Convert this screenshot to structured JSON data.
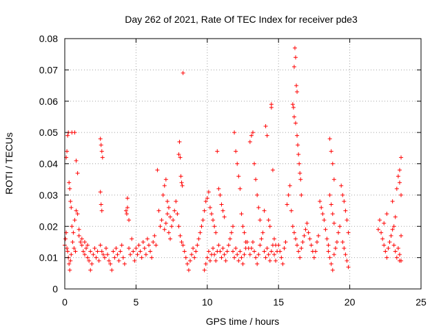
{
  "chart_data": {
    "type": "scatter",
    "title": "Day 262 of 2021, Rate Of TEC Index for receiver pde3",
    "xlabel": "GPS time / hours",
    "ylabel": "ROTI / TECUs",
    "xlim": [
      0,
      25
    ],
    "ylim": [
      0,
      0.08
    ],
    "x_ticks": [
      0,
      5,
      10,
      15,
      20,
      25
    ],
    "y_ticks": [
      0,
      0.01,
      0.02,
      0.03,
      0.04,
      0.05,
      0.06,
      0.07,
      0.08
    ],
    "x_tick_labels": [
      "0",
      "5",
      "10",
      "15",
      "20",
      "25"
    ],
    "y_tick_labels": [
      "0",
      "0.01",
      "0.02",
      "0.03",
      "0.04",
      "0.05",
      "0.06",
      "0.07",
      "0.08"
    ],
    "grid": true,
    "marker": "+",
    "color": "#ff0000",
    "points": [
      [
        0.0,
        0.014
      ],
      [
        0.05,
        0.016
      ],
      [
        0.1,
        0.018
      ],
      [
        0.15,
        0.013
      ],
      [
        0.2,
        0.012
      ],
      [
        0.25,
        0.01
      ],
      [
        0.3,
        0.008
      ],
      [
        0.35,
        0.006
      ],
      [
        0.4,
        0.009
      ],
      [
        0.45,
        0.011
      ],
      [
        0.1,
        0.042
      ],
      [
        0.15,
        0.044
      ],
      [
        0.2,
        0.049
      ],
      [
        0.25,
        0.05
      ],
      [
        0.3,
        0.034
      ],
      [
        0.35,
        0.032
      ],
      [
        0.4,
        0.028
      ],
      [
        0.45,
        0.026
      ],
      [
        0.5,
        0.05
      ],
      [
        0.7,
        0.05
      ],
      [
        0.5,
        0.02
      ],
      [
        0.6,
        0.018
      ],
      [
        0.7,
        0.022
      ],
      [
        0.8,
        0.025
      ],
      [
        0.9,
        0.024
      ],
      [
        0.8,
        0.041
      ],
      [
        0.9,
        0.037
      ],
      [
        0.55,
        0.015
      ],
      [
        0.65,
        0.013
      ],
      [
        0.75,
        0.012
      ],
      [
        1.0,
        0.017
      ],
      [
        1.1,
        0.015
      ],
      [
        1.2,
        0.014
      ],
      [
        1.3,
        0.012
      ],
      [
        1.4,
        0.011
      ],
      [
        1.5,
        0.013
      ],
      [
        1.6,
        0.01
      ],
      [
        1.7,
        0.009
      ],
      [
        1.8,
        0.012
      ],
      [
        1.9,
        0.008
      ],
      [
        1.0,
        0.019
      ],
      [
        1.2,
        0.016
      ],
      [
        1.4,
        0.015
      ],
      [
        1.6,
        0.014
      ],
      [
        1.8,
        0.006
      ],
      [
        2.0,
        0.011
      ],
      [
        2.1,
        0.013
      ],
      [
        2.2,
        0.01
      ],
      [
        2.3,
        0.012
      ],
      [
        2.4,
        0.009
      ],
      [
        2.5,
        0.048
      ],
      [
        2.55,
        0.046
      ],
      [
        2.6,
        0.044
      ],
      [
        2.65,
        0.042
      ],
      [
        2.5,
        0.031
      ],
      [
        2.55,
        0.027
      ],
      [
        2.6,
        0.025
      ],
      [
        2.5,
        0.014
      ],
      [
        2.6,
        0.012
      ],
      [
        2.7,
        0.011
      ],
      [
        2.8,
        0.01
      ],
      [
        2.9,
        0.013
      ],
      [
        3.0,
        0.011
      ],
      [
        3.1,
        0.009
      ],
      [
        3.2,
        0.008
      ],
      [
        3.3,
        0.006
      ],
      [
        3.4,
        0.012
      ],
      [
        3.5,
        0.01
      ],
      [
        3.6,
        0.013
      ],
      [
        3.7,
        0.011
      ],
      [
        3.8,
        0.009
      ],
      [
        3.9,
        0.012
      ],
      [
        4.0,
        0.014
      ],
      [
        4.1,
        0.01
      ],
      [
        4.2,
        0.008
      ],
      [
        4.3,
        0.025
      ],
      [
        4.35,
        0.024
      ],
      [
        4.4,
        0.026
      ],
      [
        4.5,
        0.022
      ],
      [
        4.4,
        0.029
      ],
      [
        4.5,
        0.013
      ],
      [
        4.6,
        0.011
      ],
      [
        4.7,
        0.016
      ],
      [
        4.8,
        0.012
      ],
      [
        4.9,
        0.009
      ],
      [
        5.0,
        0.013
      ],
      [
        5.1,
        0.011
      ],
      [
        5.2,
        0.014
      ],
      [
        5.3,
        0.012
      ],
      [
        5.4,
        0.01
      ],
      [
        5.5,
        0.015
      ],
      [
        5.6,
        0.013
      ],
      [
        5.7,
        0.011
      ],
      [
        5.8,
        0.016
      ],
      [
        5.9,
        0.014
      ],
      [
        6.0,
        0.012
      ],
      [
        6.1,
        0.01
      ],
      [
        6.2,
        0.015
      ],
      [
        6.3,
        0.017
      ],
      [
        6.4,
        0.014
      ],
      [
        6.5,
        0.038
      ],
      [
        6.6,
        0.025
      ],
      [
        6.7,
        0.02
      ],
      [
        6.8,
        0.022
      ],
      [
        6.9,
        0.03
      ],
      [
        7.0,
        0.033
      ],
      [
        7.1,
        0.035
      ],
      [
        7.2,
        0.028
      ],
      [
        7.3,
        0.026
      ],
      [
        7.4,
        0.023
      ],
      [
        7.0,
        0.019
      ],
      [
        7.1,
        0.021
      ],
      [
        7.2,
        0.024
      ],
      [
        7.3,
        0.018
      ],
      [
        7.4,
        0.016
      ],
      [
        7.5,
        0.02
      ],
      [
        7.6,
        0.022
      ],
      [
        7.7,
        0.025
      ],
      [
        7.8,
        0.028
      ],
      [
        7.9,
        0.024
      ],
      [
        8.0,
        0.043
      ],
      [
        8.05,
        0.047
      ],
      [
        8.1,
        0.042
      ],
      [
        8.15,
        0.036
      ],
      [
        8.2,
        0.034
      ],
      [
        8.25,
        0.033
      ],
      [
        8.3,
        0.069
      ],
      [
        8.0,
        0.02
      ],
      [
        8.1,
        0.017
      ],
      [
        8.2,
        0.015
      ],
      [
        8.3,
        0.014
      ],
      [
        8.4,
        0.012
      ],
      [
        8.5,
        0.01
      ],
      [
        8.6,
        0.008
      ],
      [
        8.7,
        0.006
      ],
      [
        8.8,
        0.009
      ],
      [
        8.9,
        0.011
      ],
      [
        9.0,
        0.013
      ],
      [
        9.1,
        0.01
      ],
      [
        9.2,
        0.012
      ],
      [
        9.3,
        0.014
      ],
      [
        9.4,
        0.016
      ],
      [
        9.5,
        0.018
      ],
      [
        9.6,
        0.02
      ],
      [
        9.7,
        0.022
      ],
      [
        9.8,
        0.025
      ],
      [
        9.9,
        0.028
      ],
      [
        10.0,
        0.029
      ],
      [
        10.1,
        0.031
      ],
      [
        10.2,
        0.026
      ],
      [
        10.3,
        0.024
      ],
      [
        10.4,
        0.022
      ],
      [
        10.5,
        0.02
      ],
      [
        10.6,
        0.018
      ],
      [
        10.7,
        0.044
      ],
      [
        10.8,
        0.032
      ],
      [
        10.9,
        0.03
      ],
      [
        11.0,
        0.027
      ],
      [
        11.1,
        0.025
      ],
      [
        11.2,
        0.023
      ],
      [
        9.8,
        0.006
      ],
      [
        9.9,
        0.008
      ],
      [
        10.0,
        0.01
      ],
      [
        10.1,
        0.012
      ],
      [
        10.2,
        0.009
      ],
      [
        10.3,
        0.011
      ],
      [
        10.4,
        0.013
      ],
      [
        10.5,
        0.011
      ],
      [
        10.6,
        0.009
      ],
      [
        10.7,
        0.012
      ],
      [
        10.8,
        0.014
      ],
      [
        10.9,
        0.012
      ],
      [
        11.0,
        0.01
      ],
      [
        11.1,
        0.013
      ],
      [
        11.2,
        0.011
      ],
      [
        11.3,
        0.009
      ],
      [
        11.4,
        0.012
      ],
      [
        11.5,
        0.014
      ],
      [
        11.6,
        0.016
      ],
      [
        11.7,
        0.018
      ],
      [
        11.8,
        0.02
      ],
      [
        11.9,
        0.05
      ],
      [
        12.0,
        0.044
      ],
      [
        12.1,
        0.04
      ],
      [
        12.2,
        0.036
      ],
      [
        12.3,
        0.032
      ],
      [
        12.4,
        0.024
      ],
      [
        12.5,
        0.02
      ],
      [
        12.6,
        0.018
      ],
      [
        12.7,
        0.015
      ],
      [
        11.8,
        0.012
      ],
      [
        11.9,
        0.01
      ],
      [
        12.0,
        0.013
      ],
      [
        12.1,
        0.011
      ],
      [
        12.2,
        0.009
      ],
      [
        12.3,
        0.012
      ],
      [
        12.4,
        0.01
      ],
      [
        12.5,
        0.008
      ],
      [
        12.6,
        0.011
      ],
      [
        12.7,
        0.013
      ],
      [
        12.8,
        0.015
      ],
      [
        12.9,
        0.013
      ],
      [
        13.0,
        0.047
      ],
      [
        13.1,
        0.049
      ],
      [
        13.2,
        0.05
      ],
      [
        13.3,
        0.04
      ],
      [
        13.4,
        0.035
      ],
      [
        13.5,
        0.03
      ],
      [
        13.6,
        0.026
      ],
      [
        13.7,
        0.022
      ],
      [
        13.0,
        0.011
      ],
      [
        13.1,
        0.013
      ],
      [
        13.2,
        0.015
      ],
      [
        13.3,
        0.012
      ],
      [
        13.4,
        0.01
      ],
      [
        13.5,
        0.008
      ],
      [
        13.6,
        0.011
      ],
      [
        13.7,
        0.014
      ],
      [
        13.8,
        0.016
      ],
      [
        13.9,
        0.018
      ],
      [
        14.0,
        0.025
      ],
      [
        14.1,
        0.052
      ],
      [
        14.2,
        0.049
      ],
      [
        14.3,
        0.022
      ],
      [
        14.4,
        0.02
      ],
      [
        14.5,
        0.059
      ],
      [
        14.5,
        0.058
      ],
      [
        14.6,
        0.038
      ],
      [
        14.7,
        0.016
      ],
      [
        14.8,
        0.014
      ],
      [
        14.0,
        0.012
      ],
      [
        14.1,
        0.01
      ],
      [
        14.2,
        0.013
      ],
      [
        14.3,
        0.011
      ],
      [
        14.4,
        0.009
      ],
      [
        14.5,
        0.012
      ],
      [
        14.6,
        0.014
      ],
      [
        14.7,
        0.011
      ],
      [
        14.8,
        0.009
      ],
      [
        14.9,
        0.012
      ],
      [
        15.0,
        0.014
      ],
      [
        15.1,
        0.012
      ],
      [
        15.2,
        0.01
      ],
      [
        15.3,
        0.008
      ],
      [
        15.4,
        0.013
      ],
      [
        15.5,
        0.015
      ],
      [
        15.6,
        0.027
      ],
      [
        15.7,
        0.03
      ],
      [
        15.8,
        0.033
      ],
      [
        15.9,
        0.025
      ],
      [
        16.0,
        0.059
      ],
      [
        16.05,
        0.058
      ],
      [
        16.1,
        0.071
      ],
      [
        16.15,
        0.077
      ],
      [
        16.2,
        0.074
      ],
      [
        16.25,
        0.065
      ],
      [
        16.3,
        0.063
      ],
      [
        16.1,
        0.055
      ],
      [
        16.2,
        0.053
      ],
      [
        16.3,
        0.049
      ],
      [
        16.35,
        0.046
      ],
      [
        16.4,
        0.043
      ],
      [
        16.45,
        0.04
      ],
      [
        16.5,
        0.037
      ],
      [
        16.55,
        0.035
      ],
      [
        16.6,
        0.03
      ],
      [
        16.0,
        0.02
      ],
      [
        16.1,
        0.018
      ],
      [
        16.2,
        0.016
      ],
      [
        16.3,
        0.014
      ],
      [
        16.4,
        0.012
      ],
      [
        16.5,
        0.01
      ],
      [
        16.6,
        0.013
      ],
      [
        16.7,
        0.015
      ],
      [
        16.8,
        0.017
      ],
      [
        16.9,
        0.019
      ],
      [
        17.0,
        0.021
      ],
      [
        17.1,
        0.018
      ],
      [
        17.2,
        0.016
      ],
      [
        17.3,
        0.014
      ],
      [
        17.4,
        0.012
      ],
      [
        17.5,
        0.01
      ],
      [
        17.6,
        0.012
      ],
      [
        17.7,
        0.015
      ],
      [
        17.8,
        0.017
      ],
      [
        17.9,
        0.028
      ],
      [
        18.0,
        0.026
      ],
      [
        18.1,
        0.024
      ],
      [
        18.2,
        0.022
      ],
      [
        18.3,
        0.019
      ],
      [
        18.4,
        0.016
      ],
      [
        18.5,
        0.014
      ],
      [
        18.6,
        0.048
      ],
      [
        18.7,
        0.044
      ],
      [
        18.8,
        0.04
      ],
      [
        18.9,
        0.035
      ],
      [
        18.6,
        0.03
      ],
      [
        18.7,
        0.027
      ],
      [
        18.8,
        0.024
      ],
      [
        18.9,
        0.021
      ],
      [
        18.5,
        0.012
      ],
      [
        18.6,
        0.01
      ],
      [
        18.7,
        0.008
      ],
      [
        18.8,
        0.006
      ],
      [
        18.9,
        0.011
      ],
      [
        19.0,
        0.013
      ],
      [
        19.1,
        0.015
      ],
      [
        19.2,
        0.018
      ],
      [
        19.3,
        0.02
      ],
      [
        19.4,
        0.033
      ],
      [
        19.5,
        0.03
      ],
      [
        19.6,
        0.028
      ],
      [
        19.7,
        0.025
      ],
      [
        19.8,
        0.022
      ],
      [
        19.9,
        0.018
      ],
      [
        19.5,
        0.015
      ],
      [
        19.6,
        0.013
      ],
      [
        19.7,
        0.011
      ],
      [
        19.8,
        0.009
      ],
      [
        19.9,
        0.007
      ],
      [
        22.0,
        0.019
      ],
      [
        22.1,
        0.022
      ],
      [
        22.2,
        0.018
      ],
      [
        22.3,
        0.016
      ],
      [
        22.4,
        0.014
      ],
      [
        22.5,
        0.012
      ],
      [
        22.6,
        0.01
      ],
      [
        22.7,
        0.013
      ],
      [
        22.8,
        0.015
      ],
      [
        22.9,
        0.017
      ],
      [
        23.0,
        0.019
      ],
      [
        23.1,
        0.014
      ],
      [
        23.2,
        0.012
      ],
      [
        23.3,
        0.01
      ],
      [
        23.4,
        0.013
      ],
      [
        23.5,
        0.011
      ],
      [
        23.0,
        0.028
      ],
      [
        23.3,
        0.032
      ],
      [
        23.5,
        0.038
      ],
      [
        23.6,
        0.042
      ],
      [
        23.4,
        0.036
      ],
      [
        23.5,
        0.034
      ],
      [
        23.6,
        0.03
      ],
      [
        23.1,
        0.02
      ],
      [
        23.2,
        0.023
      ],
      [
        23.6,
        0.017
      ],
      [
        23.6,
        0.009
      ],
      [
        23.5,
        0.009
      ],
      [
        22.6,
        0.024
      ],
      [
        22.4,
        0.021
      ]
    ]
  }
}
